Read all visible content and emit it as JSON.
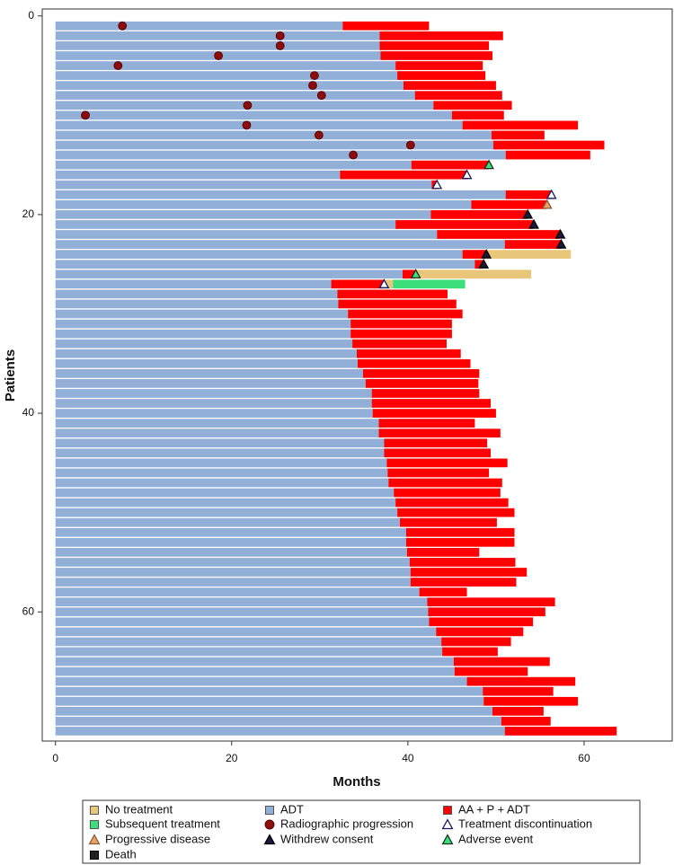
{
  "chart_data": {
    "type": "swimmer",
    "xlabel": "Months",
    "ylabel": "Patients",
    "xlim": [
      -1.5,
      70
    ],
    "xticks": [
      0,
      20,
      40,
      60
    ],
    "ylim": [
      -0.7,
      73
    ],
    "yticks": [
      0,
      20,
      40,
      60
    ],
    "series": [
      {
        "name": "ADT",
        "color": "#92afd7",
        "values": [
          32.6,
          36.8,
          36.8,
          36.9,
          38.6,
          38.8,
          39.5,
          40.8,
          42.9,
          45.0,
          46.2,
          49.5,
          49.7,
          51.1,
          40.4,
          32.3,
          42.7,
          51.1,
          47.2,
          42.6,
          38.6,
          43.3,
          51.0,
          46.2,
          47.6,
          39.4,
          31.3,
          32.0,
          32.1,
          33.2,
          33.5,
          33.5,
          33.7,
          34.2,
          34.3,
          34.9,
          35.2,
          35.9,
          35.9,
          36.0,
          36.7,
          36.7,
          37.3,
          37.3,
          37.6,
          37.7,
          37.8,
          38.4,
          38.6,
          38.8,
          39.1,
          39.8,
          39.8,
          39.9,
          40.2,
          40.3,
          40.3,
          41.3,
          42.2,
          42.3,
          42.4,
          43.2,
          43.8,
          43.9,
          45.2,
          45.3,
          46.7,
          48.5,
          48.6,
          49.6,
          50.6,
          51.0
        ]
      },
      {
        "name": "AA + P + ADT",
        "color": "#ff0000",
        "values": [
          9.8,
          14.0,
          12.4,
          12.7,
          9.9,
          10.0,
          10.5,
          9.9,
          8.9,
          5.9,
          13.1,
          6.0,
          12.6,
          9.6,
          8.8,
          14.5,
          0.7,
          5.2,
          8.5,
          11.0,
          15.7,
          13.9,
          6.4,
          2.6,
          0.9,
          1.4,
          6.0,
          12.5,
          13.4,
          13.0,
          11.5,
          11.5,
          10.7,
          11.8,
          12.8,
          13.2,
          12.8,
          12.2,
          13.5,
          14.0,
          10.9,
          13.8,
          11.7,
          12.1,
          13.7,
          11.5,
          12.9,
          12.1,
          12.8,
          13.3,
          11.0,
          12.3,
          12.3,
          8.2,
          12.0,
          13.2,
          12.0,
          5.4,
          14.5,
          13.3,
          11.8,
          9.9,
          7.9,
          6.3,
          10.9,
          8.3,
          12.3,
          8.0,
          10.7,
          5.8,
          5.6,
          12.7
        ]
      },
      {
        "name": "No treatment",
        "color": "#e8c67a",
        "values": [
          null,
          null,
          null,
          null,
          null,
          null,
          null,
          null,
          null,
          null,
          null,
          null,
          null,
          null,
          null,
          null,
          null,
          null,
          null,
          null,
          null,
          null,
          null,
          9.7,
          null,
          13.2,
          1.0,
          null,
          null,
          null,
          null,
          null,
          null,
          null,
          null,
          null,
          null,
          null,
          null,
          null,
          null,
          null,
          null,
          null,
          null,
          null,
          null,
          null,
          null,
          null,
          null,
          null,
          null,
          null,
          null,
          null,
          null,
          null,
          null,
          null,
          null,
          null,
          null,
          null,
          null,
          null,
          null,
          null,
          null,
          null,
          null,
          null
        ]
      },
      {
        "name": "Subsequent treatment",
        "color": "#3be07b",
        "values": [
          null,
          null,
          null,
          null,
          null,
          null,
          null,
          null,
          null,
          null,
          null,
          null,
          null,
          null,
          null,
          null,
          null,
          null,
          null,
          null,
          null,
          null,
          null,
          null,
          null,
          null,
          8.2,
          null,
          null,
          null,
          null,
          null,
          null,
          null,
          null,
          null,
          null,
          null,
          null,
          null,
          null,
          null,
          null,
          null,
          null,
          null,
          null,
          null,
          null,
          null,
          null,
          null,
          null,
          null,
          null,
          null,
          null,
          null,
          null,
          null,
          null,
          null,
          null,
          null,
          null,
          null,
          null,
          null,
          null,
          null,
          null,
          null
        ]
      }
    ],
    "events": [
      {
        "name": "Radiographic progression",
        "symbol": "circle",
        "color": "#8b0d0d",
        "stroke": "#5a0000",
        "patients": [
          1,
          2,
          3,
          4,
          5,
          6,
          7,
          8,
          9,
          10,
          11,
          12,
          13,
          14
        ],
        "months": [
          7.6,
          25.5,
          25.5,
          18.5,
          7.1,
          29.4,
          29.2,
          30.2,
          21.8,
          3.4,
          21.7,
          29.9,
          40.3,
          33.8
        ]
      },
      {
        "name": "Treatment discontinuation",
        "symbol": "triangle",
        "color": "#ffffff",
        "stroke": "#1a1a60",
        "patients": [
          16,
          17,
          18,
          27
        ],
        "months": [
          46.7,
          43.3,
          56.3,
          37.3
        ]
      },
      {
        "name": "Progressive disease",
        "symbol": "triangle",
        "color": "#f0a060",
        "stroke": "#806040",
        "patients": [
          19
        ],
        "months": [
          55.8
        ]
      },
      {
        "name": "Withdrew consent",
        "symbol": "triangle",
        "color": "#1a1a40",
        "stroke": "#000000",
        "patients": [
          20,
          21,
          22,
          23,
          24,
          25
        ],
        "months": [
          53.6,
          54.3,
          57.3,
          57.4,
          48.9,
          48.6
        ]
      },
      {
        "name": "Adverse event",
        "symbol": "triangle",
        "color": "#3be07b",
        "stroke": "#1a3020",
        "patients": [
          15,
          26
        ],
        "months": [
          49.2,
          40.9
        ]
      },
      {
        "name": "Death",
        "symbol": "square",
        "color": "#222222",
        "stroke": "#000000",
        "patients": [],
        "months": []
      }
    ]
  }
}
